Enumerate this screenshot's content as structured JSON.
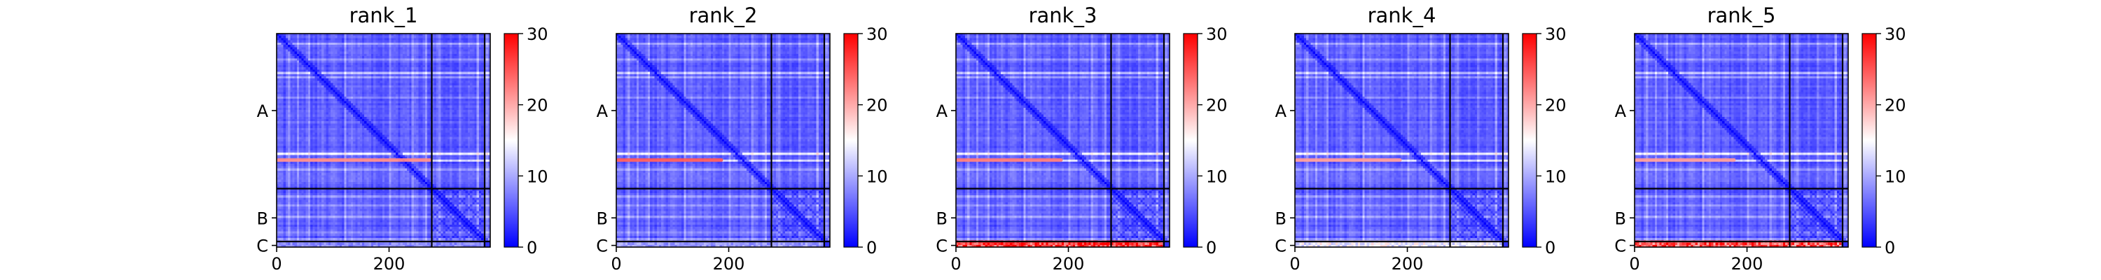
{
  "chart_data": [
    {
      "type": "heatmap",
      "title": "rank_1",
      "x_ticks": [
        {
          "value": 0,
          "label": "0"
        },
        {
          "value": 200,
          "label": "200"
        }
      ],
      "x_range": [
        0,
        380
      ],
      "chain_labels": [
        {
          "label": "A",
          "center": 137
        },
        {
          "label": "B",
          "center": 328
        },
        {
          "label": "C",
          "center": 377
        }
      ],
      "chain_boundaries": [
        276,
        370
      ],
      "colorbar": {
        "min": 0,
        "max": 30,
        "ticks": [
          {
            "value": 0,
            "label": "0"
          },
          {
            "value": 10,
            "label": "10"
          },
          {
            "value": 20,
            "label": "20"
          },
          {
            "value": 30,
            "label": "30"
          }
        ],
        "colors": [
          "#0000ff",
          "#ffffff",
          "#ff0000"
        ]
      },
      "red_bands": [
        {
          "row": 225,
          "x_from": 0,
          "x_to": 276,
          "value": 22
        }
      ],
      "red_cols": [],
      "bottom_band_value": 8
    },
    {
      "type": "heatmap",
      "title": "rank_2",
      "x_ticks": [
        {
          "value": 0,
          "label": "0"
        },
        {
          "value": 200,
          "label": "200"
        }
      ],
      "x_range": [
        0,
        380
      ],
      "chain_labels": [
        {
          "label": "A",
          "center": 137
        },
        {
          "label": "B",
          "center": 328
        },
        {
          "label": "C",
          "center": 377
        }
      ],
      "chain_boundaries": [
        276,
        370
      ],
      "colorbar": {
        "min": 0,
        "max": 30,
        "ticks": [
          {
            "value": 0,
            "label": "0"
          },
          {
            "value": 10,
            "label": "10"
          },
          {
            "value": 20,
            "label": "20"
          },
          {
            "value": 30,
            "label": "30"
          }
        ],
        "colors": [
          "#0000ff",
          "#ffffff",
          "#ff0000"
        ]
      },
      "red_bands": [
        {
          "row": 225,
          "x_from": 0,
          "x_to": 190,
          "value": 25
        }
      ],
      "red_cols": [],
      "bottom_band_value": 9
    },
    {
      "type": "heatmap",
      "title": "rank_3",
      "x_ticks": [
        {
          "value": 0,
          "label": "0"
        },
        {
          "value": 200,
          "label": "200"
        }
      ],
      "x_range": [
        0,
        380
      ],
      "chain_labels": [
        {
          "label": "A",
          "center": 137
        },
        {
          "label": "B",
          "center": 328
        },
        {
          "label": "C",
          "center": 377
        }
      ],
      "chain_boundaries": [
        276,
        370
      ],
      "colorbar": {
        "min": 0,
        "max": 30,
        "ticks": [
          {
            "value": 0,
            "label": "0"
          },
          {
            "value": 10,
            "label": "10"
          },
          {
            "value": 20,
            "label": "20"
          },
          {
            "value": 30,
            "label": "30"
          }
        ],
        "colors": [
          "#0000ff",
          "#ffffff",
          "#ff0000"
        ]
      },
      "red_bands": [
        {
          "row": 225,
          "x_from": 0,
          "x_to": 190,
          "value": 23
        }
      ],
      "red_cols": [],
      "bottom_band_value": 27
    },
    {
      "type": "heatmap",
      "title": "rank_4",
      "x_ticks": [
        {
          "value": 0,
          "label": "0"
        },
        {
          "value": 200,
          "label": "200"
        }
      ],
      "x_range": [
        0,
        380
      ],
      "chain_labels": [
        {
          "label": "A",
          "center": 137
        },
        {
          "label": "B",
          "center": 328
        },
        {
          "label": "C",
          "center": 377
        }
      ],
      "chain_boundaries": [
        276,
        370
      ],
      "colorbar": {
        "min": 0,
        "max": 30,
        "ticks": [
          {
            "value": 0,
            "label": "0"
          },
          {
            "value": 10,
            "label": "10"
          },
          {
            "value": 20,
            "label": "20"
          },
          {
            "value": 30,
            "label": "30"
          }
        ],
        "colors": [
          "#0000ff",
          "#ffffff",
          "#ff0000"
        ]
      },
      "red_bands": [
        {
          "row": 225,
          "x_from": 0,
          "x_to": 190,
          "value": 21
        }
      ],
      "red_cols": [],
      "bottom_band_value": 14
    },
    {
      "type": "heatmap",
      "title": "rank_5",
      "x_ticks": [
        {
          "value": 0,
          "label": "0"
        },
        {
          "value": 200,
          "label": "200"
        }
      ],
      "x_range": [
        0,
        380
      ],
      "chain_labels": [
        {
          "label": "A",
          "center": 137
        },
        {
          "label": "B",
          "center": 328
        },
        {
          "label": "C",
          "center": 377
        }
      ],
      "chain_boundaries": [
        276,
        370
      ],
      "colorbar": {
        "min": 0,
        "max": 30,
        "ticks": [
          {
            "value": 0,
            "label": "0"
          },
          {
            "value": 10,
            "label": "10"
          },
          {
            "value": 20,
            "label": "20"
          },
          {
            "value": 30,
            "label": "30"
          }
        ],
        "colors": [
          "#0000ff",
          "#ffffff",
          "#ff0000"
        ]
      },
      "red_bands": [
        {
          "row": 225,
          "x_from": 0,
          "x_to": 180,
          "value": 21
        }
      ],
      "red_cols": [],
      "bottom_band_value": 25
    }
  ]
}
